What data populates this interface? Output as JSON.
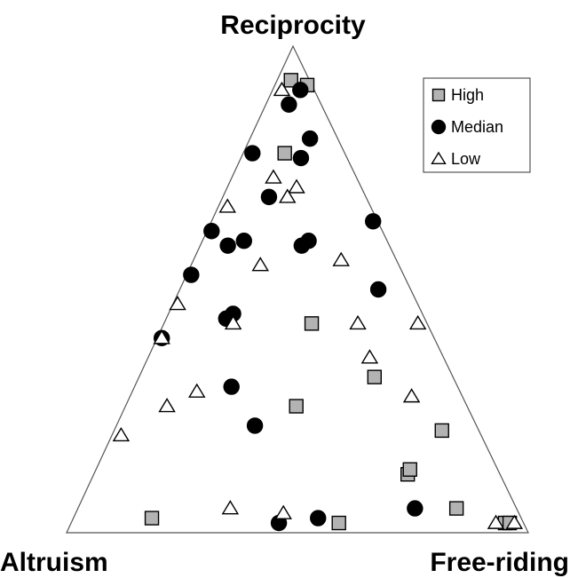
{
  "chart_data": {
    "type": "ternary",
    "vertex_labels": {
      "top": "Reciprocity",
      "left": "Altruism",
      "right": "Free-riding"
    },
    "legend": "top-right",
    "series": [
      {
        "name": "High",
        "marker": "square",
        "color": "#b3b3b3",
        "reciprocity": [
          93,
          92,
          78,
          43,
          32,
          26,
          21,
          12,
          13,
          3,
          2,
          5,
          2,
          2
        ],
        "altruism": [
          4,
          1,
          13,
          25,
          17,
          37,
          8,
          20,
          19,
          80,
          40,
          13,
          4,
          3
        ],
        "free_riding": [
          3,
          7,
          9,
          32,
          51,
          37,
          71,
          68,
          68,
          17,
          58,
          82,
          94,
          95
        ]
      },
      {
        "name": "Median",
        "marker": "circle",
        "color": "#000000",
        "reciprocity": [
          91,
          88,
          81,
          78,
          77,
          69,
          64,
          62,
          60,
          59,
          60,
          59,
          53,
          50,
          45,
          44,
          40,
          30,
          22,
          2,
          3,
          5
        ],
        "altruism": [
          3,
          7,
          6,
          20,
          10,
          21,
          1,
          37,
          17,
          35,
          31,
          19,
          46,
          7,
          41,
          43,
          59,
          49,
          48,
          53,
          44,
          22
        ],
        "free_riding": [
          6,
          5,
          13,
          2,
          13,
          10,
          35,
          1,
          23,
          6,
          9,
          22,
          1,
          43,
          14,
          13,
          1,
          21,
          30,
          45,
          53,
          73
        ]
      },
      {
        "name": "Low",
        "marker": "triangle",
        "color": "#ffffff",
        "reciprocity": [
          91,
          73,
          71,
          69,
          67,
          55,
          56,
          47,
          43,
          43,
          43,
          40,
          36,
          29,
          26,
          28,
          20,
          5,
          4,
          2,
          2
        ],
        "altruism": [
          7,
          18,
          14,
          17,
          31,
          30,
          12,
          52,
          42,
          15,
          2,
          59,
          16,
          57,
          65,
          11,
          78,
          62,
          51,
          6,
          2
        ],
        "free_riding": [
          2,
          9,
          15,
          14,
          2,
          15,
          32,
          1,
          15,
          42,
          55,
          1,
          48,
          14,
          9,
          61,
          2,
          33,
          45,
          92,
          96
        ]
      }
    ]
  }
}
